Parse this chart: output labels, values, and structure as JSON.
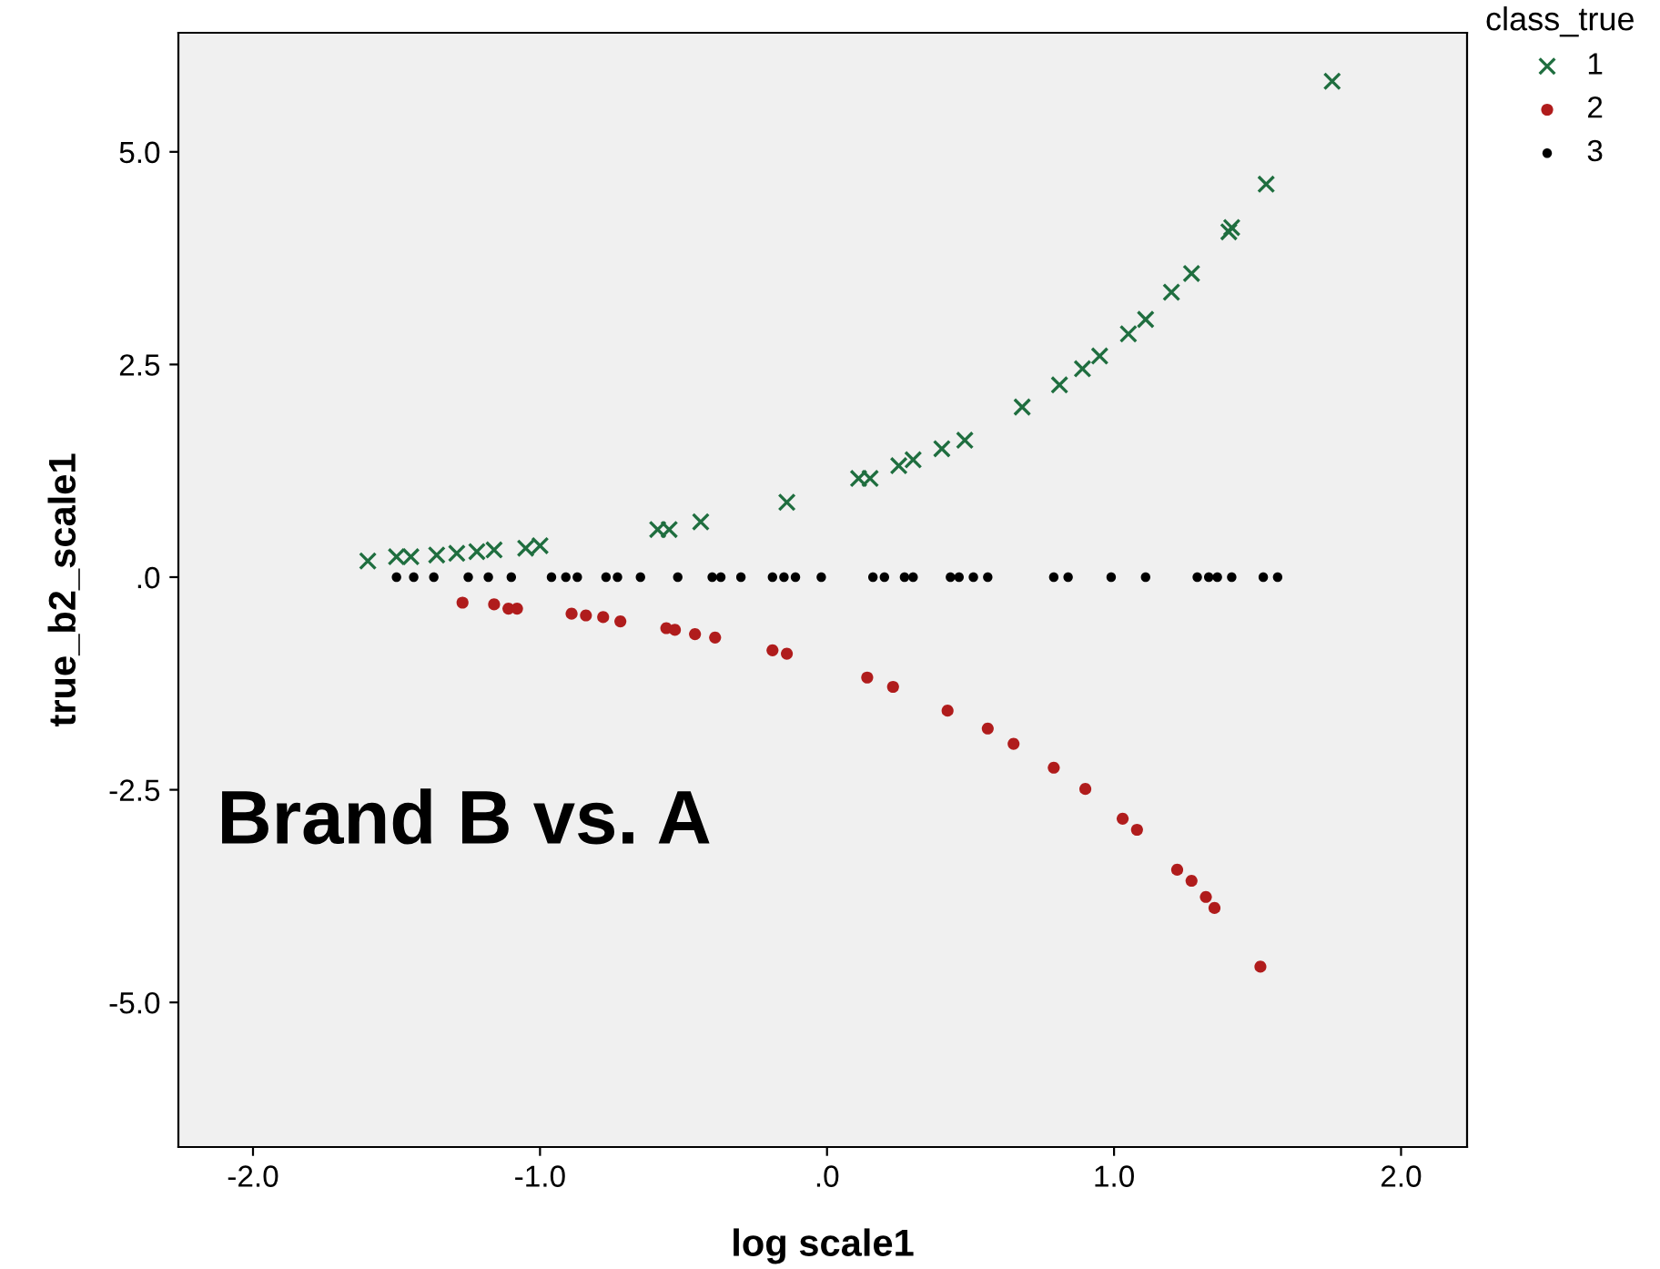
{
  "chart_data": {
    "type": "scatter",
    "xlabel": "log scale1",
    "ylabel": "true_b2_scale1",
    "legend_title": "class_true",
    "legend": "right",
    "grid": false,
    "xlim": [
      -2.26,
      2.23
    ],
    "ylim": [
      -6.7,
      6.4
    ],
    "xticks": [
      {
        "value": -2.0,
        "label": "-2.0"
      },
      {
        "value": -1.0,
        "label": "-1.0"
      },
      {
        "value": 0,
        "label": ".0"
      },
      {
        "value": 1.0,
        "label": "1.0"
      },
      {
        "value": 2.0,
        "label": "2.0"
      }
    ],
    "yticks": [
      {
        "value": -5.0,
        "label": "-5.0"
      },
      {
        "value": -2.5,
        "label": "-2.5"
      },
      {
        "value": 0,
        "label": ".0"
      },
      {
        "value": 2.5,
        "label": "2.5"
      },
      {
        "value": 5.0,
        "label": "5.0"
      }
    ],
    "annotations": [
      "Brand B vs. A"
    ],
    "series": [
      {
        "name": "1",
        "color": "#1f6e3f",
        "marker": "cross",
        "x": [
          -1.6,
          -1.5,
          -1.45,
          -1.36,
          -1.29,
          -1.22,
          -1.16,
          -1.05,
          -1.0,
          -0.59,
          -0.55,
          -0.44,
          -0.14,
          0.11,
          0.15,
          0.25,
          0.3,
          0.4,
          0.48,
          0.68,
          0.81,
          0.89,
          0.95,
          1.05,
          1.11,
          1.2,
          1.27,
          1.4,
          1.41,
          1.53,
          1.76
        ],
        "values": [
          0.19,
          0.24,
          0.24,
          0.26,
          0.28,
          0.3,
          0.32,
          0.34,
          0.37,
          0.56,
          0.56,
          0.65,
          0.88,
          1.16,
          1.16,
          1.31,
          1.38,
          1.51,
          1.61,
          2.0,
          2.26,
          2.45,
          2.6,
          2.86,
          3.03,
          3.35,
          3.57,
          4.06,
          4.11,
          4.62,
          5.83
        ]
      },
      {
        "name": "2",
        "color": "#b01c1c",
        "marker": "circle",
        "x": [
          -1.27,
          -1.16,
          -1.11,
          -1.08,
          -0.89,
          -0.84,
          -0.78,
          -0.72,
          -0.56,
          -0.53,
          -0.46,
          -0.39,
          -0.19,
          -0.14,
          0.14,
          0.23,
          0.42,
          0.56,
          0.65,
          0.79,
          0.9,
          1.03,
          1.08,
          1.22,
          1.27,
          1.32,
          1.35,
          1.51
        ],
        "values": [
          -0.3,
          -0.32,
          -0.37,
          -0.37,
          -0.43,
          -0.45,
          -0.47,
          -0.52,
          -0.6,
          -0.62,
          -0.67,
          -0.71,
          -0.86,
          -0.9,
          -1.18,
          -1.29,
          -1.57,
          -1.78,
          -1.96,
          -2.24,
          -2.49,
          -2.84,
          -2.97,
          -3.44,
          -3.57,
          -3.76,
          -3.89,
          -4.58
        ]
      },
      {
        "name": "3",
        "color": "#000000",
        "marker": "circle",
        "x": [
          -1.5,
          -1.44,
          -1.37,
          -1.25,
          -1.18,
          -1.1,
          -0.96,
          -0.91,
          -0.87,
          -0.77,
          -0.73,
          -0.65,
          -0.52,
          -0.4,
          -0.37,
          -0.3,
          -0.19,
          -0.15,
          -0.11,
          -0.02,
          0.16,
          0.2,
          0.27,
          0.3,
          0.43,
          0.46,
          0.51,
          0.56,
          0.79,
          0.84,
          0.99,
          1.11,
          1.29,
          1.33,
          1.36,
          1.41,
          1.52,
          1.57
        ],
        "values": [
          0,
          0,
          0,
          0,
          0,
          0,
          0,
          0,
          0,
          0,
          0,
          0,
          0,
          0,
          0,
          0,
          0,
          0,
          0,
          0,
          0,
          0,
          0,
          0,
          0,
          0,
          0,
          0,
          0,
          0,
          0,
          0,
          0,
          0,
          0,
          0,
          0,
          0
        ]
      }
    ]
  }
}
